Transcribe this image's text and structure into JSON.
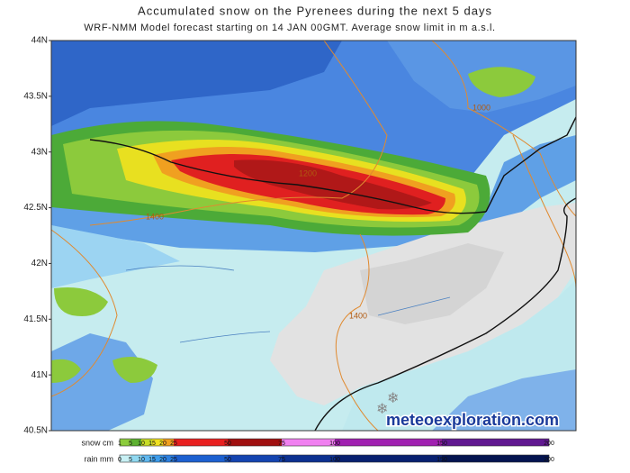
{
  "header": {
    "title": "Accumulated snow on the Pyrenees during the next 5 days",
    "subtitle": "WRF-NMM Model forecast starting on 14 JAN 00GMT.  Average snow limit in m a.s.l."
  },
  "map": {
    "lat_labels": [
      "44N",
      "43.5N",
      "43N",
      "42.5N",
      "42N",
      "41.5N",
      "41N",
      "40.5N"
    ],
    "contour_labels": [
      "1000",
      "1200",
      "1400",
      "1400"
    ],
    "watermark": "meteoexploration.com"
  },
  "legend": {
    "snow": {
      "label": "snow cm",
      "ticks": [
        "1",
        "5",
        "10",
        "15",
        "20",
        "25",
        "50",
        "75",
        "100",
        "150",
        "200"
      ],
      "colors": [
        "#8ccc3c",
        "#5cb030",
        "#c8dc28",
        "#f0e020",
        "#f0a020",
        "#e82020",
        "#a01010",
        "#f080f0",
        "#a020b0",
        "#601890"
      ]
    },
    "rain": {
      "label": "rain mm",
      "ticks": [
        "0",
        "5",
        "10",
        "15",
        "20",
        "25",
        "50",
        "75",
        "100",
        "150",
        "200"
      ],
      "colors": [
        "#c8f0f4",
        "#90d8f0",
        "#60b8f0",
        "#3c9cec",
        "#2c80e0",
        "#1c60d0",
        "#1444b0",
        "#0c3090",
        "#082070",
        "#041450"
      ]
    }
  }
}
